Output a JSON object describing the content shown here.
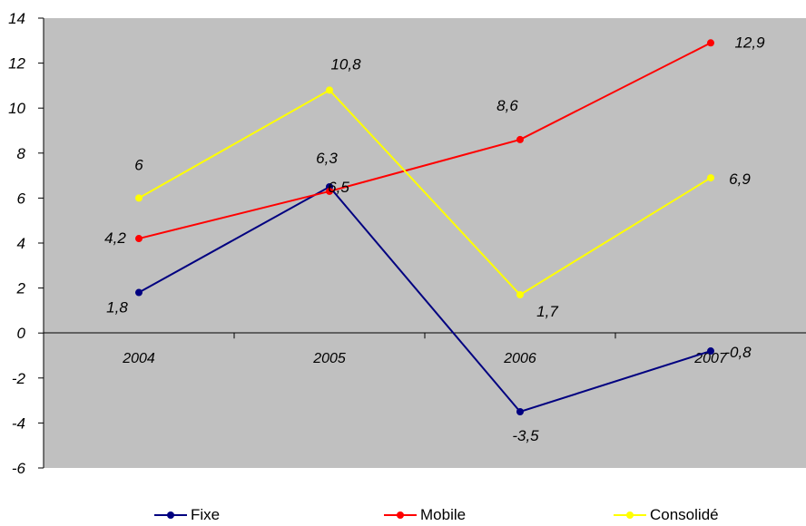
{
  "chart_data": {
    "type": "line",
    "title": "",
    "xlabel": "",
    "ylabel": "",
    "categories": [
      "2004",
      "2005",
      "2006",
      "2007"
    ],
    "ylim": [
      -6,
      14
    ],
    "yticks": [
      "14",
      "12",
      "10",
      "8",
      "6",
      "4",
      "2",
      "0",
      "-2",
      "-4",
      "-6"
    ],
    "yticks_values": [
      14,
      12,
      10,
      8,
      6,
      4,
      2,
      0,
      -2,
      -4,
      -6
    ],
    "grid": false,
    "plot_background": "#c0c0c0",
    "legend_position": "bottom",
    "series": [
      {
        "name": "Fixe",
        "color": "#000080",
        "values": [
          1.8,
          6.5,
          -3.5,
          -0.8
        ],
        "labels": [
          "1,8",
          "6,5",
          "-3,5",
          "-0,8"
        ]
      },
      {
        "name": "Mobile",
        "color": "#ff0000",
        "values": [
          4.2,
          6.3,
          8.6,
          12.9
        ],
        "labels": [
          "4,2",
          "6,3",
          "8,6",
          "12,9"
        ]
      },
      {
        "name": "Consolidé",
        "color": "#ffff00",
        "values": [
          6,
          10.8,
          1.7,
          6.9
        ],
        "labels": [
          "6",
          "10,8",
          "1,7",
          "6,9"
        ]
      }
    ]
  }
}
